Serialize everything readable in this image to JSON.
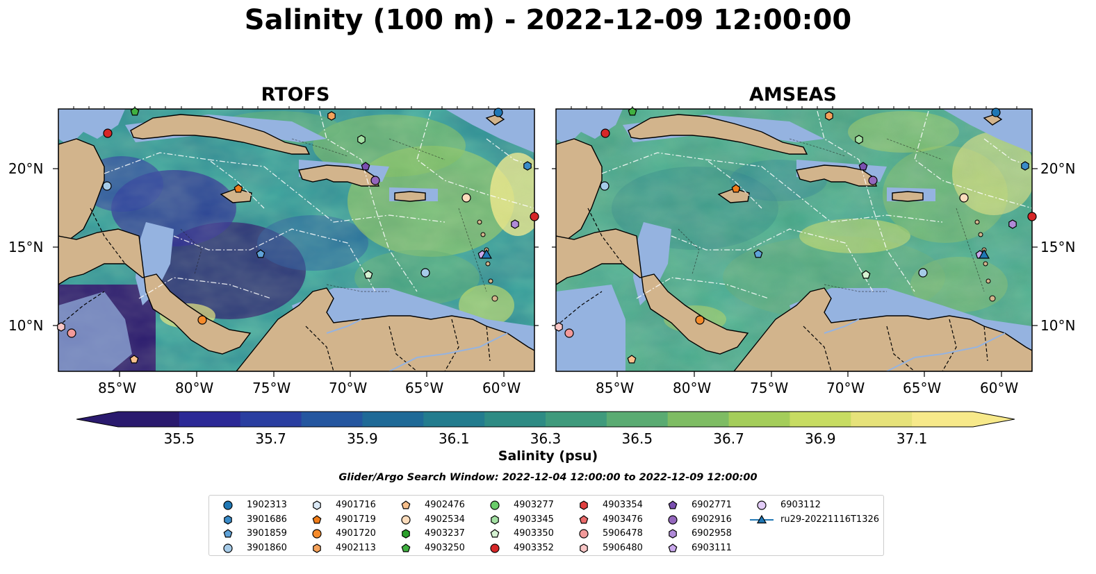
{
  "title": "Salinity (100 m) - 2022-12-09 12:00:00",
  "panels": [
    {
      "id": "rtofs",
      "title": "RTOFS"
    },
    {
      "id": "amseas",
      "title": "AMSEAS"
    }
  ],
  "lon_ticks": [
    "85°W",
    "80°W",
    "75°W",
    "70°W",
    "65°W",
    "60°W"
  ],
  "lat_ticks": [
    "20°N",
    "15°N",
    "10°N"
  ],
  "colorbar": {
    "label": "Salinity (psu)",
    "ticks": [
      "35.5",
      "35.7",
      "35.9",
      "36.1",
      "36.3",
      "36.5",
      "36.7",
      "36.9",
      "37.1"
    ],
    "colors": [
      "#2a1a6e",
      "#2c2996",
      "#2a3ea0",
      "#24569f",
      "#1f6a97",
      "#237c8e",
      "#2e8b84",
      "#3f9a7c",
      "#5aab72",
      "#7ebc63",
      "#a4cd5a",
      "#c7dc62",
      "#e6e27a",
      "#f7e98a"
    ],
    "extend": "both"
  },
  "search_window": "Glider/Argo Search Window: 2022-12-04 12:00:00 to 2022-12-09 12:00:00",
  "colors": {
    "land": "#d2b48c",
    "shallow_water": "#95b3e0"
  },
  "legend": [
    {
      "label": "1902313",
      "marker": "circle",
      "color": "#1f77b4"
    },
    {
      "label": "3901686",
      "marker": "hexagon",
      "color": "#3a8bc8"
    },
    {
      "label": "3901859",
      "marker": "pentagon",
      "color": "#5fa2d8"
    },
    {
      "label": "3901860",
      "marker": "circle",
      "color": "#a6cbe8"
    },
    {
      "label": "4901716",
      "marker": "hexagon",
      "color": "#dbe9f6"
    },
    {
      "label": "4901719",
      "marker": "pentagon",
      "color": "#f07d1a"
    },
    {
      "label": "4901720",
      "marker": "circle",
      "color": "#f58b2b"
    },
    {
      "label": "4902113",
      "marker": "hexagon",
      "color": "#f5a25b"
    },
    {
      "label": "4902476",
      "marker": "pentagon",
      "color": "#f8c08c"
    },
    {
      "label": "4902534",
      "marker": "circle",
      "color": "#fcdcbc"
    },
    {
      "label": "4903237",
      "marker": "hexagon",
      "color": "#2ca02c"
    },
    {
      "label": "4903250",
      "marker": "pentagon",
      "color": "#40b040"
    },
    {
      "label": "4903277",
      "marker": "circle",
      "color": "#6acc6a"
    },
    {
      "label": "4903345",
      "marker": "hexagon",
      "color": "#a3e0a3"
    },
    {
      "label": "4903350",
      "marker": "pentagon",
      "color": "#d5f2d2"
    },
    {
      "label": "4903352",
      "marker": "circle",
      "color": "#d62728"
    },
    {
      "label": "4903354",
      "marker": "hexagon",
      "color": "#e04040"
    },
    {
      "label": "4903476",
      "marker": "pentagon",
      "color": "#ea6b6b"
    },
    {
      "label": "5906478",
      "marker": "circle",
      "color": "#f29a9a"
    },
    {
      "label": "5906480",
      "marker": "hexagon",
      "color": "#f8c6c6"
    },
    {
      "label": "6902771",
      "marker": "pentagon",
      "color": "#7a4fb0"
    },
    {
      "label": "6902916",
      "marker": "circle",
      "color": "#9467bd"
    },
    {
      "label": "6902958",
      "marker": "hexagon",
      "color": "#b08ad8"
    },
    {
      "label": "6903111",
      "marker": "pentagon",
      "color": "#c9a8ec"
    },
    {
      "label": "6903112",
      "marker": "circle",
      "color": "#e2ccf7"
    },
    {
      "label": "ru29-20221116T1326",
      "marker": "triangle-line",
      "color": "#1f77b4"
    }
  ]
}
